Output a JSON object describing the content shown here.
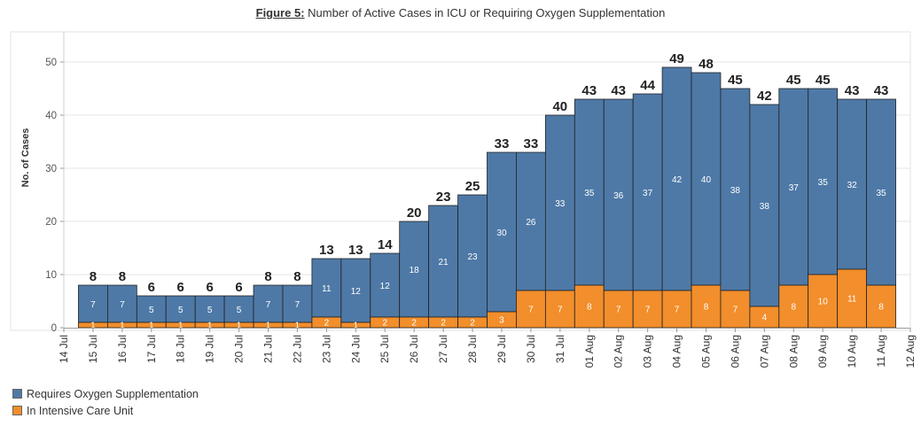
{
  "title": {
    "figure_label": "Figure 5:",
    "text": "Number of Active Cases in ICU or Requiring Oxygen Supplementation"
  },
  "chart_data": {
    "type": "bar",
    "stacked": true,
    "ylabel": "No. of Cases",
    "ylim": [
      0,
      52
    ],
    "yticks": [
      0,
      10,
      20,
      30,
      40,
      50
    ],
    "grid": "horizontal",
    "legend_position": "bottom-left",
    "x_tick_labels": [
      "14 Jul",
      "15 Jul",
      "16 Jul",
      "17 Jul",
      "18 Jul",
      "19 Jul",
      "20 Jul",
      "21 Jul",
      "22 Jul",
      "23 Jul",
      "24 Jul",
      "25 Jul",
      "26 Jul",
      "27 Jul",
      "28 Jul",
      "29 Jul",
      "30 Jul",
      "31 Jul",
      "01 Aug",
      "02 Aug",
      "03 Aug",
      "04 Aug",
      "05 Aug",
      "06 Aug",
      "07 Aug",
      "08 Aug",
      "09 Aug",
      "10 Aug",
      "11 Aug",
      "12 Aug"
    ],
    "categories": [
      "15 Jul",
      "16 Jul",
      "17 Jul",
      "18 Jul",
      "19 Jul",
      "20 Jul",
      "21 Jul",
      "22 Jul",
      "23 Jul",
      "24 Jul",
      "25 Jul",
      "26 Jul",
      "27 Jul",
      "28 Jul",
      "29 Jul",
      "30 Jul",
      "31 Jul",
      "01 Aug",
      "02 Aug",
      "03 Aug",
      "04 Aug",
      "05 Aug",
      "06 Aug",
      "07 Aug",
      "08 Aug",
      "09 Aug",
      "10 Aug",
      "11 Aug"
    ],
    "series": [
      {
        "name": "In Intensive Care Unit",
        "color": "#F28E2B",
        "values": [
          1,
          1,
          1,
          1,
          1,
          1,
          1,
          1,
          2,
          1,
          2,
          2,
          2,
          2,
          3,
          7,
          7,
          8,
          7,
          7,
          7,
          8,
          7,
          4,
          8,
          10,
          11,
          8
        ]
      },
      {
        "name": "Requires Oxygen Supplementation",
        "color": "#4E79A7",
        "values": [
          7,
          7,
          5,
          5,
          5,
          5,
          7,
          7,
          11,
          12,
          12,
          18,
          21,
          23,
          30,
          26,
          33,
          35,
          36,
          37,
          42,
          40,
          38,
          38,
          37,
          35,
          32,
          35
        ]
      }
    ],
    "totals": [
      8,
      8,
      6,
      6,
      6,
      6,
      8,
      8,
      13,
      13,
      14,
      20,
      23,
      25,
      33,
      33,
      40,
      43,
      43,
      44,
      49,
      48,
      45,
      42,
      45,
      45,
      43,
      43
    ]
  }
}
